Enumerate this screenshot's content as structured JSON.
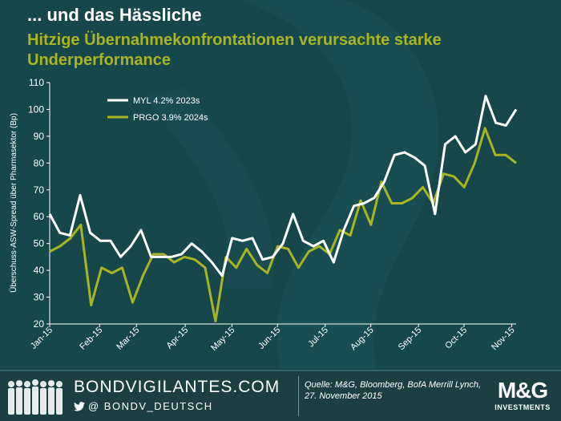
{
  "header": {
    "title": "... und das Hässliche",
    "subtitle": "Hitzige Übernahmekonfrontationen verursachte starke Underperformance"
  },
  "colors": {
    "background": "#16474b",
    "myl": "#ffffff",
    "prgo": "#a8b422",
    "axis": "#ffffff"
  },
  "chart_data": {
    "type": "line",
    "ylabel": "Überschuss-ASW-Spread über Pharmasektor (Bp)",
    "ylim": [
      20,
      110
    ],
    "yticks": [
      "20",
      "30",
      "40",
      "50",
      "60",
      "70",
      "80",
      "90",
      "100",
      "110"
    ],
    "xlim": [
      0,
      43
    ],
    "xticks": [
      {
        "label": "Jan-15",
        "pos": 0
      },
      {
        "label": "Feb-15",
        "pos": 4.6
      },
      {
        "label": "Mar-15",
        "pos": 8
      },
      {
        "label": "Apr-15",
        "pos": 12.5
      },
      {
        "label": "May-15",
        "pos": 16.8
      },
      {
        "label": "Jun-15",
        "pos": 21
      },
      {
        "label": "Jul-15",
        "pos": 25.4
      },
      {
        "label": "Aug-15",
        "pos": 29.6
      },
      {
        "label": "Sep-15",
        "pos": 34
      },
      {
        "label": "Oct-15",
        "pos": 38.2
      },
      {
        "label": "Nov-15",
        "pos": 42.6
      }
    ],
    "grid": false,
    "legend_position": "top-left",
    "series": [
      {
        "name": "MYL 4.2% 2023s",
        "values": [
          61,
          54,
          53,
          68,
          54,
          51,
          51,
          45,
          49,
          55,
          45,
          45,
          45,
          46,
          50,
          47,
          43,
          38,
          52,
          51,
          52,
          44,
          45,
          50,
          61,
          51,
          49,
          51,
          43,
          55,
          64,
          65,
          67,
          73,
          83,
          84,
          82,
          79,
          61,
          87,
          90,
          84,
          87,
          105,
          95,
          94,
          100
        ]
      },
      {
        "name": "PRGO 3.9% 2024s",
        "values": [
          47,
          49,
          52,
          57,
          27,
          41,
          39,
          41,
          28,
          38,
          46,
          46,
          43,
          45,
          44,
          41,
          21,
          45,
          41,
          48,
          42,
          39,
          49,
          48,
          41,
          47,
          49,
          46,
          55,
          53,
          66,
          57,
          73,
          65,
          65,
          67,
          71,
          65,
          76,
          75,
          71,
          80,
          93,
          83,
          83,
          80
        ]
      }
    ]
  },
  "footer": {
    "brand": "BONDVIGILANTES.COM",
    "handle": "@ BONDV_DEUTSCH",
    "source": "Quelle: M&G, Bloomberg, BofA Merrill Lynch, 27. November 2015",
    "logo_main": "M&G",
    "logo_sub": "INVESTMENTS"
  }
}
